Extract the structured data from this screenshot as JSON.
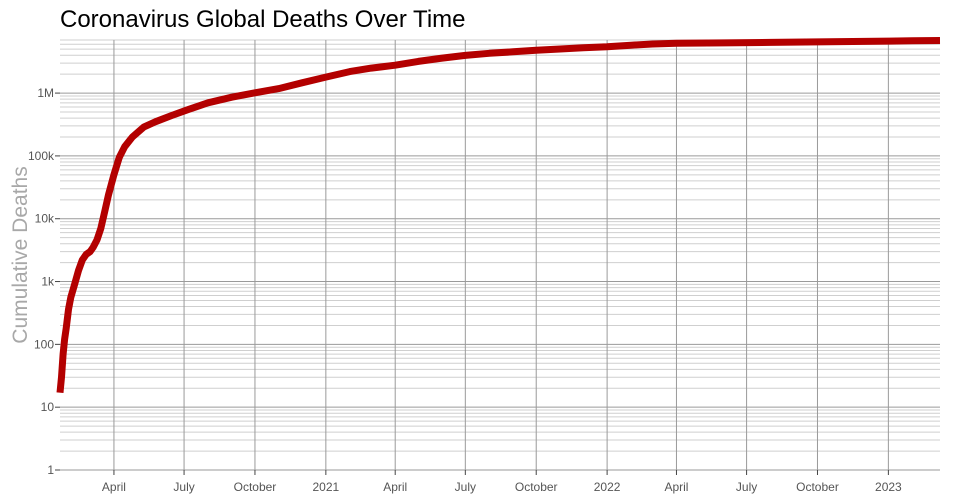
{
  "chart_data": {
    "type": "line",
    "title": "Coronavirus Global Deaths Over Time",
    "xlabel": "",
    "ylabel": "Cumulative Deaths",
    "y_scale": "log",
    "ylim": [
      1,
      7000000
    ],
    "xlim": [
      "2020-01-22",
      "2023-03-09"
    ],
    "grid": true,
    "legend": "none",
    "line_color": "#b30000",
    "y_ticks": [
      {
        "value": 1,
        "label": "1"
      },
      {
        "value": 10,
        "label": "10"
      },
      {
        "value": 100,
        "label": "100"
      },
      {
        "value": 1000,
        "label": "1k"
      },
      {
        "value": 10000,
        "label": "10k"
      },
      {
        "value": 100000,
        "label": "100k"
      },
      {
        "value": 1000000,
        "label": "1M"
      }
    ],
    "x_ticks": [
      {
        "date": "2020-04-01",
        "label": "April"
      },
      {
        "date": "2020-07-01",
        "label": "July"
      },
      {
        "date": "2020-10-01",
        "label": "October"
      },
      {
        "date": "2021-01-01",
        "label": "2021"
      },
      {
        "date": "2021-04-01",
        "label": "April"
      },
      {
        "date": "2021-07-01",
        "label": "July"
      },
      {
        "date": "2021-10-01",
        "label": "October"
      },
      {
        "date": "2022-01-01",
        "label": "2022"
      },
      {
        "date": "2022-04-01",
        "label": "April"
      },
      {
        "date": "2022-07-01",
        "label": "July"
      },
      {
        "date": "2022-10-01",
        "label": "October"
      },
      {
        "date": "2023-01-01",
        "label": "2023"
      }
    ],
    "series": [
      {
        "x": [
          "2020-01-22",
          "2020-01-24",
          "2020-01-26",
          "2020-01-28",
          "2020-01-30",
          "2020-02-02",
          "2020-02-05",
          "2020-02-10",
          "2020-02-15",
          "2020-02-20",
          "2020-02-25",
          "2020-03-01",
          "2020-03-05",
          "2020-03-10",
          "2020-03-15",
          "2020-03-20",
          "2020-03-25",
          "2020-04-01",
          "2020-04-08",
          "2020-04-15",
          "2020-04-25",
          "2020-05-10",
          "2020-05-25",
          "2020-06-15",
          "2020-07-05",
          "2020-08-01",
          "2020-09-01",
          "2020-10-01",
          "2020-11-01",
          "2020-12-01",
          "2021-01-01",
          "2021-02-01",
          "2021-03-01",
          "2021-04-01",
          "2021-05-01",
          "2021-06-01",
          "2021-07-01",
          "2021-08-01",
          "2021-09-01",
          "2021-10-01",
          "2021-11-01",
          "2021-12-01",
          "2022-01-01",
          "2022-02-01",
          "2022-03-01",
          "2022-04-01",
          "2022-06-01",
          "2022-08-01",
          "2022-10-01",
          "2022-12-01",
          "2023-01-01",
          "2023-02-01",
          "2023-03-09"
        ],
        "y": [
          17,
          30,
          70,
          120,
          180,
          360,
          560,
          900,
          1500,
          2200,
          2700,
          3000,
          3500,
          4600,
          7000,
          13000,
          24000,
          50000,
          95000,
          140000,
          200000,
          290000,
          350000,
          440000,
          540000,
          700000,
          860000,
          1010000,
          1180000,
          1460000,
          1800000,
          2200000,
          2500000,
          2780000,
          3190000,
          3600000,
          3980000,
          4300000,
          4550000,
          4810000,
          5030000,
          5250000,
          5460000,
          5780000,
          6050000,
          6210000,
          6290000,
          6400000,
          6520000,
          6640000,
          6720000,
          6820000,
          6880000
        ]
      }
    ]
  }
}
